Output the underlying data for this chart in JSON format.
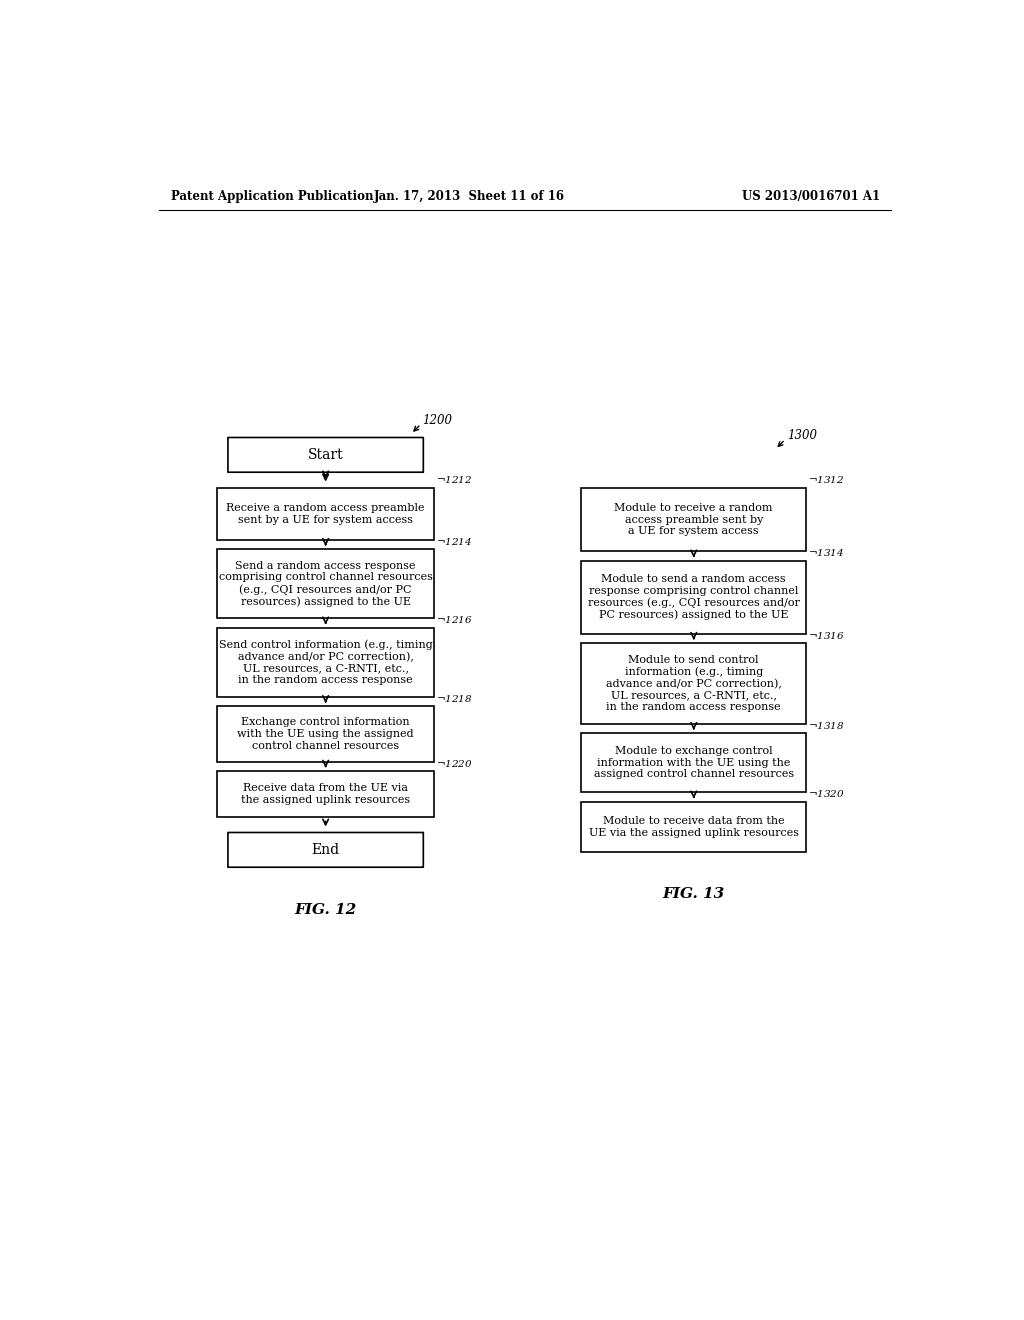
{
  "header_left": "Patent Application Publication",
  "header_mid": "Jan. 17, 2013  Sheet 11 of 16",
  "header_right": "US 2013/0016701 A1",
  "fig12_label": "1200",
  "fig12_caption": "FIG. 12",
  "fig13_label": "1300",
  "fig13_caption": "FIG. 13",
  "fig12_start": "Start",
  "fig12_end": "End",
  "fig12_boxes": [
    {
      "label": "1212",
      "text": "Receive a random access preamble\nsent by a UE for system access"
    },
    {
      "label": "1214",
      "text": "Send a random access response\ncomprising control channel resources\n(e.g., CQI resources and/or PC\nresources) assigned to the UE"
    },
    {
      "label": "1216",
      "text": "Send control information (e.g., timing\nadvance and/or PC correction),\nUL resources, a C-RNTI, etc.,\nin the random access response"
    },
    {
      "label": "1218",
      "text": "Exchange control information\nwith the UE using the assigned\ncontrol channel resources"
    },
    {
      "label": "1220",
      "text": "Receive data from the UE via\nthe assigned uplink resources"
    }
  ],
  "fig13_boxes": [
    {
      "label": "1312",
      "text": "Module to receive a random\naccess preamble sent by\na UE for system access"
    },
    {
      "label": "1314",
      "text": "Module to send a random access\nresponse comprising control channel\nresources (e.g., CQI resources and/or\nPC resources) assigned to the UE"
    },
    {
      "label": "1316",
      "text": "Module to send control\ninformation (e.g., timing\nadvance and/or PC correction),\nUL resources, a C-RNTI, etc.,\nin the random access response"
    },
    {
      "label": "1318",
      "text": "Module to exchange control\ninformation with the UE using the\nassigned control channel resources"
    },
    {
      "label": "1320",
      "text": "Module to receive data from the\nUE via the assigned uplink resources"
    }
  ],
  "bg_color": "#ffffff",
  "box_edge_color": "#000000",
  "text_color": "#000000"
}
